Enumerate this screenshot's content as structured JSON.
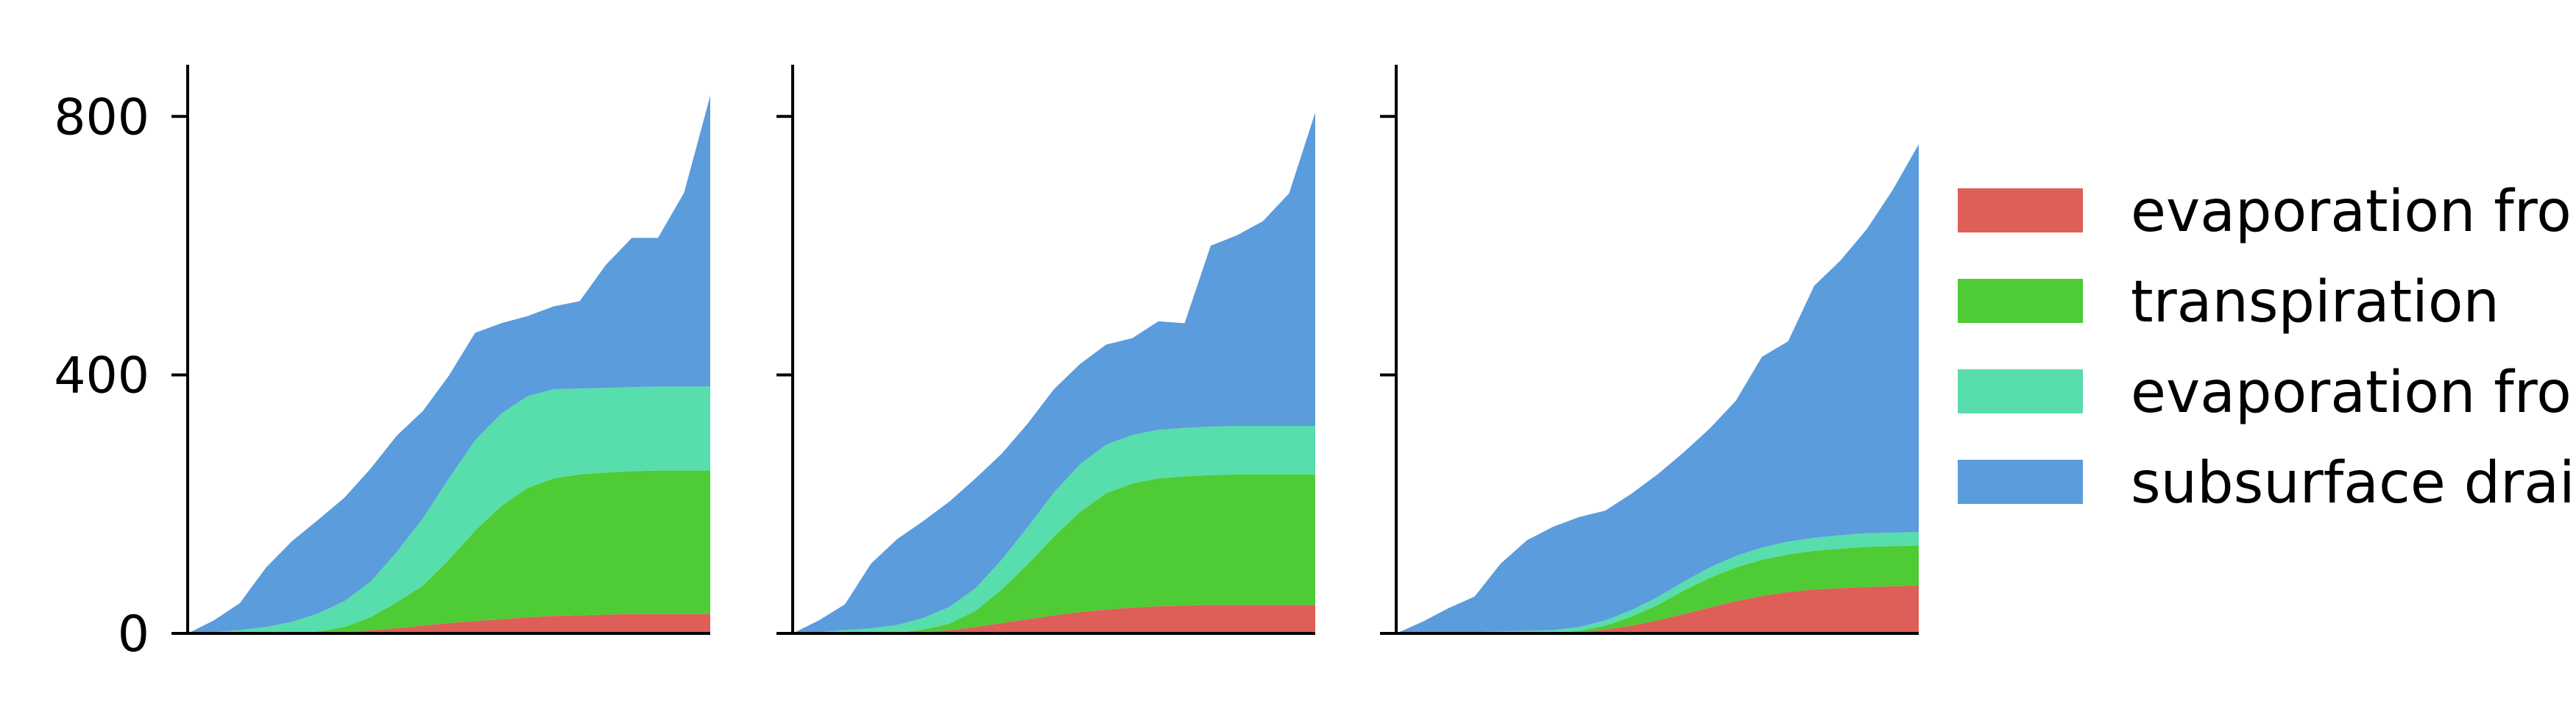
{
  "chart_data": [
    {
      "type": "area",
      "stacked": true,
      "x": [
        0,
        5,
        10,
        15,
        20,
        25,
        30,
        35,
        40,
        45,
        50,
        55,
        60,
        65,
        70,
        75,
        80,
        85,
        90,
        95,
        100
      ],
      "ylim": [
        0,
        880
      ],
      "yticks": [
        0,
        400,
        800
      ],
      "series": [
        {
          "name": "evaporation from soil",
          "values": [
            0,
            0,
            0,
            0,
            0,
            1,
            2,
            5,
            8,
            12,
            16,
            19,
            22,
            25,
            27,
            28,
            29,
            30,
            30,
            30,
            30
          ]
        },
        {
          "name": "transpiration",
          "values": [
            0,
            0,
            0,
            0,
            0,
            2,
            8,
            20,
            40,
            62,
            98,
            140,
            175,
            200,
            213,
            218,
            220,
            221,
            222,
            222,
            222
          ]
        },
        {
          "name": "evaporation from canopy",
          "values": [
            0,
            2,
            5,
            10,
            18,
            28,
            40,
            55,
            78,
            104,
            126,
            140,
            143,
            142,
            138,
            133,
            131,
            130,
            130,
            130,
            130
          ]
        },
        {
          "name": "subsurface drainage",
          "values": [
            0,
            18,
            42,
            92,
            125,
            145,
            160,
            175,
            180,
            166,
            159,
            166,
            140,
            124,
            128,
            135,
            190,
            231,
            230,
            300,
            450
          ]
        }
      ]
    },
    {
      "type": "area",
      "stacked": true,
      "x": [
        0,
        5,
        10,
        15,
        20,
        25,
        30,
        35,
        40,
        45,
        50,
        55,
        60,
        65,
        70,
        75,
        80,
        85,
        90,
        95,
        100
      ],
      "ylim": [
        0,
        880
      ],
      "yticks": [
        0,
        400,
        800
      ],
      "series": [
        {
          "name": "evaporation from soil",
          "values": [
            0,
            0,
            0,
            0,
            0,
            2,
            5,
            10,
            16,
            22,
            28,
            33,
            37,
            40,
            42,
            43,
            44,
            44,
            44,
            44,
            44
          ]
        },
        {
          "name": "transpiration",
          "values": [
            0,
            0,
            0,
            0,
            1,
            4,
            10,
            25,
            52,
            85,
            122,
            155,
            180,
            192,
            198,
            200,
            201,
            202,
            202,
            202,
            202
          ]
        },
        {
          "name": "evaporation from canopy",
          "values": [
            0,
            2,
            5,
            8,
            12,
            18,
            26,
            35,
            46,
            58,
            68,
            74,
            75,
            75,
            75,
            75,
            75,
            75,
            75,
            75,
            75
          ]
        },
        {
          "name": "subsurface drainage",
          "values": [
            0,
            18,
            40,
            100,
            133,
            150,
            163,
            170,
            164,
            160,
            160,
            155,
            155,
            150,
            168,
            162,
            280,
            295,
            317,
            360,
            485
          ]
        }
      ]
    },
    {
      "type": "area",
      "stacked": true,
      "x": [
        0,
        5,
        10,
        15,
        20,
        25,
        30,
        35,
        40,
        45,
        50,
        55,
        60,
        65,
        70,
        75,
        80,
        85,
        90,
        95,
        100
      ],
      "ylim": [
        0,
        880
      ],
      "yticks": [
        0,
        400,
        800
      ],
      "series": [
        {
          "name": "evaporation from soil",
          "values": [
            0,
            0,
            0,
            0,
            0,
            0,
            0,
            2,
            6,
            12,
            20,
            30,
            40,
            50,
            58,
            64,
            68,
            70,
            72,
            73,
            74
          ]
        },
        {
          "name": "transpiration",
          "values": [
            0,
            0,
            0,
            0,
            0,
            0,
            0,
            2,
            6,
            14,
            24,
            36,
            46,
            52,
            56,
            58,
            60,
            61,
            62,
            62,
            62
          ]
        },
        {
          "name": "evaporation from canopy",
          "values": [
            0,
            0,
            1,
            2,
            3,
            4,
            5,
            6,
            8,
            10,
            12,
            14,
            16,
            18,
            19,
            20,
            20,
            21,
            21,
            21,
            21
          ]
        },
        {
          "name": "subsurface drainage",
          "values": [
            0,
            18,
            38,
            55,
            105,
            140,
            160,
            170,
            170,
            180,
            190,
            200,
            215,
            240,
            295,
            310,
            390,
            425,
            470,
            530,
            600
          ]
        }
      ]
    }
  ],
  "legend": {
    "placement": "right",
    "items": [
      {
        "label": "evaporation from soil",
        "color": "#dd5f57"
      },
      {
        "label": "transpiration",
        "color": "#4fcb36"
      },
      {
        "label": "evaporation from canopy",
        "color": "#58ddad"
      },
      {
        "label": "subsurface drainage",
        "color": "#5a9cdc"
      }
    ]
  },
  "axes": {
    "shared_y": true,
    "y_tick_labels": [
      "0",
      "400",
      "800"
    ]
  }
}
